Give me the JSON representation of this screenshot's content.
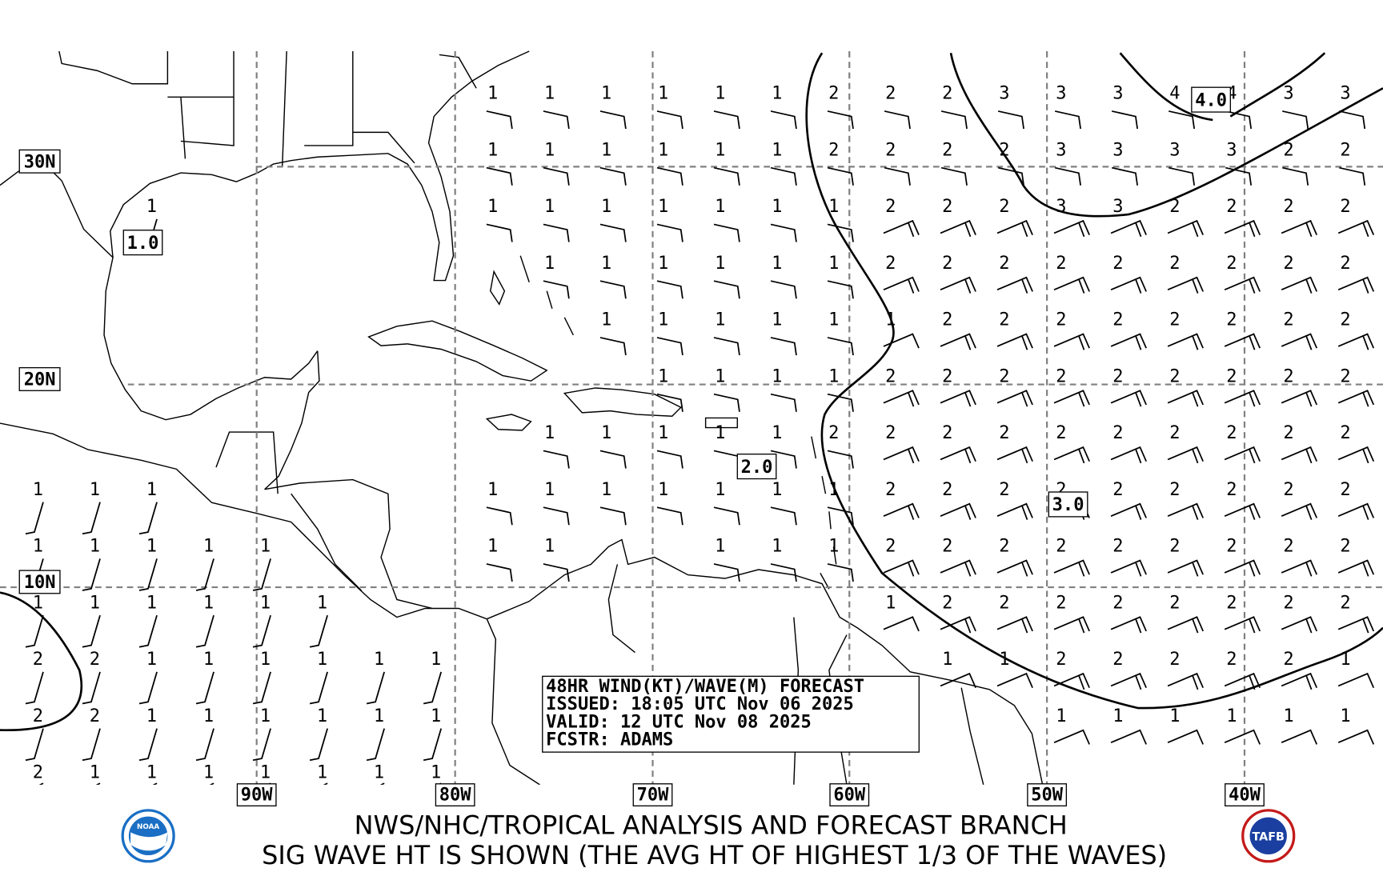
{
  "title_box": {
    "line1": "48HR WIND(KT)/WAVE(M) FORECAST",
    "line2": "ISSUED: 18:05 UTC Nov 06 2025",
    "line3": "VALID: 12 UTC Nov 08 2025",
    "line4": "FCSTR: ADAMS"
  },
  "footer": {
    "line1": "NWS/NHC/TROPICAL ANALYSIS AND FORECAST BRANCH",
    "line2": "SIG WAVE HT IS SHOWN (THE AVG HT OF HIGHEST 1/3 OF THE WAVES)"
  },
  "lat_labels": [
    "30N",
    "20N",
    "10N"
  ],
  "lon_labels": [
    "90W",
    "80W",
    "70W",
    "60W",
    "50W",
    "40W"
  ],
  "contour_labels": {
    "c1": "1.0",
    "c2": "2.0",
    "c3": "3.0",
    "c4": "4.0"
  },
  "logos": {
    "left": "NOAA",
    "right": "TAFB"
  },
  "colors": {
    "gridline": "#808080",
    "ink": "#000000",
    "noaa_blue": "#1a6fc4"
  },
  "wave_height_grid": [
    [
      null,
      null,
      null,
      null,
      null,
      null,
      null,
      null,
      1,
      1,
      1,
      1,
      1,
      1,
      2,
      2,
      2,
      3,
      3,
      3,
      4,
      4,
      3,
      3
    ],
    [
      null,
      null,
      null,
      null,
      null,
      null,
      null,
      null,
      1,
      1,
      1,
      1,
      1,
      1,
      2,
      2,
      2,
      2,
      3,
      3,
      3,
      3,
      2,
      2
    ],
    [
      null,
      null,
      1,
      null,
      null,
      null,
      null,
      null,
      1,
      1,
      1,
      1,
      1,
      1,
      1,
      2,
      2,
      2,
      3,
      3,
      2,
      2,
      2,
      2
    ],
    [
      null,
      null,
      null,
      null,
      null,
      null,
      null,
      null,
      null,
      1,
      1,
      1,
      1,
      1,
      1,
      2,
      2,
      2,
      2,
      2,
      2,
      2,
      2,
      2
    ],
    [
      null,
      null,
      null,
      null,
      null,
      null,
      null,
      null,
      null,
      null,
      1,
      1,
      1,
      1,
      1,
      1,
      2,
      2,
      2,
      2,
      2,
      2,
      2,
      2
    ],
    [
      null,
      null,
      null,
      null,
      null,
      null,
      null,
      null,
      null,
      null,
      null,
      1,
      1,
      1,
      1,
      2,
      2,
      2,
      2,
      2,
      2,
      2,
      2,
      2
    ],
    [
      null,
      null,
      null,
      null,
      null,
      null,
      null,
      null,
      null,
      1,
      1,
      1,
      1,
      1,
      2,
      2,
      2,
      2,
      2,
      2,
      2,
      2,
      2,
      2
    ],
    [
      1,
      1,
      1,
      null,
      null,
      null,
      null,
      null,
      1,
      1,
      1,
      1,
      1,
      1,
      1,
      2,
      2,
      2,
      2,
      2,
      2,
      2,
      2,
      2
    ],
    [
      1,
      1,
      1,
      1,
      1,
      null,
      null,
      null,
      1,
      1,
      null,
      null,
      1,
      1,
      1,
      2,
      2,
      2,
      2,
      2,
      2,
      2,
      2,
      2
    ],
    [
      1,
      1,
      1,
      1,
      1,
      1,
      null,
      null,
      null,
      null,
      null,
      null,
      null,
      null,
      null,
      1,
      2,
      2,
      2,
      2,
      2,
      2,
      2,
      2
    ],
    [
      2,
      2,
      1,
      1,
      1,
      1,
      1,
      1,
      null,
      null,
      null,
      null,
      null,
      null,
      null,
      null,
      1,
      1,
      2,
      2,
      2,
      2,
      2,
      1
    ],
    [
      2,
      2,
      1,
      1,
      1,
      1,
      1,
      1,
      null,
      null,
      null,
      null,
      null,
      null,
      null,
      null,
      null,
      null,
      1,
      1,
      1,
      1,
      1,
      1
    ],
    [
      2,
      1,
      1,
      1,
      1,
      1,
      1,
      1,
      null,
      null,
      null,
      null,
      null,
      null,
      null,
      null,
      null,
      null,
      null,
      null,
      null,
      null,
      null,
      null
    ]
  ]
}
